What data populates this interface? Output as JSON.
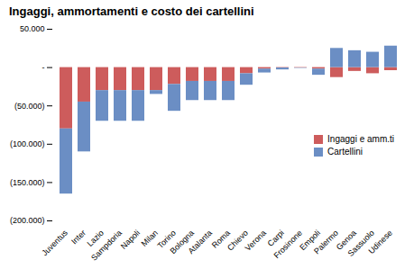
{
  "chart_data": {
    "type": "bar",
    "title": "Ingaggi, ammortamenti e costo dei cartellini",
    "categories": [
      "Juventus",
      "Inter",
      "Lazio",
      "Sampdoria",
      "Napoli",
      "Milan",
      "Torino",
      "Bologna",
      "Atalanta",
      "Roma",
      "Chievo",
      "Verona",
      "Carpi",
      "Frosinone",
      "Empoli",
      "Palermo",
      "Genoa",
      "Sassuolo",
      "Udinese"
    ],
    "series": [
      {
        "name": "Ingaggi e amm.ti",
        "color": "#CD5C5C",
        "values": [
          -80000,
          -45000,
          -30000,
          -30000,
          -30000,
          -30000,
          -22000,
          -18000,
          -18000,
          -18000,
          -8000,
          -2000,
          -500,
          -500,
          -2000,
          -13000,
          -5000,
          -8000,
          -4000
        ]
      },
      {
        "name": "Cartellini",
        "color": "#6B8EC4",
        "values": [
          -85000,
          -65000,
          -40000,
          -40000,
          -40000,
          -5000,
          -35000,
          -25000,
          -25000,
          -25000,
          -15000,
          -5000,
          -2500,
          -500,
          -8000,
          25000,
          22000,
          20000,
          28000
        ]
      }
    ],
    "stacked": true,
    "ylim": [
      -200000,
      50000
    ],
    "yticks": [
      {
        "value": 50000,
        "label": "50.000"
      },
      {
        "value": 0,
        "label": "-"
      },
      {
        "value": -50000,
        "label": "(50.000)"
      },
      {
        "value": -100000,
        "label": "(100.000)"
      },
      {
        "value": -150000,
        "label": "(150.000)"
      },
      {
        "value": -200000,
        "label": "(200.000)"
      }
    ],
    "grid": false,
    "legend": "right"
  }
}
